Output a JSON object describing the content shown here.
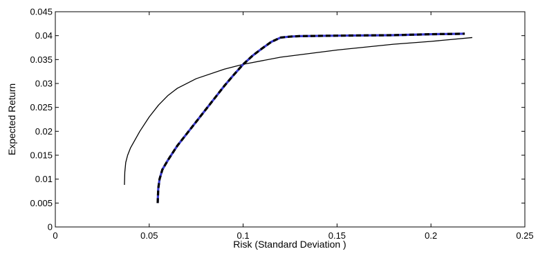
{
  "chart_data": {
    "type": "line",
    "title": "",
    "xlabel": "Risk (Standard Deviation )",
    "ylabel": "Expected Return",
    "xlim": [
      0,
      0.25
    ],
    "ylim": [
      0,
      0.045
    ],
    "xticks": [
      0,
      0.05,
      0.1,
      0.15,
      0.2,
      0.25
    ],
    "xtick_labels": [
      "0",
      "0.05",
      "0.1",
      "0.15",
      "0.2",
      "0.25"
    ],
    "yticks": [
      0,
      0.005,
      0.01,
      0.015,
      0.02,
      0.025,
      0.03,
      0.035,
      0.04,
      0.045
    ],
    "ytick_labels": [
      "0",
      "0.005",
      "0.01",
      "0.015",
      "0.02",
      "0.025",
      "0.03",
      "0.035",
      "0.04",
      "0.045"
    ],
    "grid": false,
    "legend": false,
    "series": [
      {
        "style": "solid",
        "color": "#000000",
        "x": [
          0.0368,
          0.037,
          0.0375,
          0.0385,
          0.04,
          0.045,
          0.05,
          0.055,
          0.06,
          0.065,
          0.075,
          0.09,
          0.1,
          0.12,
          0.15,
          0.18,
          0.2,
          0.222
        ],
        "y": [
          0.0088,
          0.0115,
          0.0135,
          0.015,
          0.0165,
          0.02,
          0.023,
          0.0255,
          0.0275,
          0.029,
          0.031,
          0.033,
          0.034,
          0.0355,
          0.037,
          0.0382,
          0.0388,
          0.0396
        ]
      },
      {
        "style": "dashed",
        "color": "#000000",
        "overlay_color": "#3b3bd0",
        "x": [
          0.0545,
          0.0548,
          0.0555,
          0.057,
          0.06,
          0.065,
          0.07,
          0.075,
          0.08,
          0.085,
          0.09,
          0.095,
          0.1,
          0.105,
          0.11,
          0.115,
          0.12,
          0.125,
          0.13,
          0.15,
          0.18,
          0.2,
          0.218
        ],
        "y": [
          0.005,
          0.008,
          0.01,
          0.012,
          0.014,
          0.017,
          0.0195,
          0.022,
          0.0245,
          0.027,
          0.0295,
          0.0318,
          0.034,
          0.0358,
          0.0373,
          0.0387,
          0.0396,
          0.0398,
          0.0399,
          0.04,
          0.0401,
          0.0403,
          0.0404
        ]
      }
    ]
  }
}
